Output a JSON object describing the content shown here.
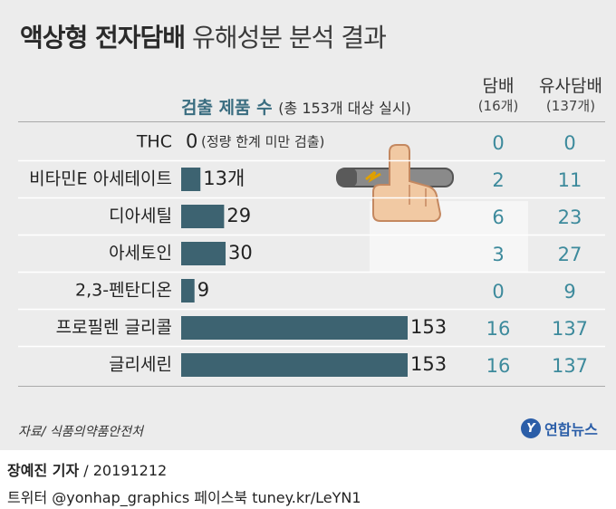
{
  "title_bold": "액상형 전자담배",
  "title_light": "유해성분 분석 결과",
  "col_cig_label": "담배",
  "col_cig_count": "(16개)",
  "col_similar_label": "유사담배",
  "col_similar_count": "(137개)",
  "chart_head_main": "검출 제품 수",
  "chart_head_note": "(총 153개 대상 실시)",
  "source": "자료/ 식품의약품안전처",
  "logo_mark": "Y",
  "logo_text": "연합뉴스",
  "credit_name": "장예진 기자",
  "credit_date": " / 20191212",
  "social": "트위터 @yonhap_graphics  페이스북 tuney.kr/LeYN1",
  "colors": {
    "bar": "#3d6371",
    "value_teal": "#3d8a9c",
    "panel": "#ececec"
  },
  "illustration_icon": "hand-holding-vape-icon",
  "chart_data": {
    "type": "bar",
    "orientation": "horizontal",
    "categories": [
      "THC",
      "비타민E 아세테이트",
      "디아세틸",
      "아세토인",
      "2,3-펜탄디온",
      "프로필렌 글리콜",
      "글리세린"
    ],
    "values": [
      0,
      13,
      29,
      30,
      9,
      153,
      153
    ],
    "value_labels": [
      "0",
      "13개",
      "29",
      "30",
      "9",
      "153",
      "153"
    ],
    "zero_note": "(정량 한계 미만 검출)",
    "xlim": [
      0,
      153
    ],
    "series": [
      {
        "name": "검출 제품 수",
        "values": [
          0,
          13,
          29,
          30,
          9,
          153,
          153
        ]
      },
      {
        "name": "담배",
        "values": [
          0,
          2,
          6,
          3,
          0,
          16,
          16
        ]
      },
      {
        "name": "유사담배",
        "values": [
          0,
          11,
          23,
          27,
          9,
          137,
          137
        ]
      }
    ]
  }
}
